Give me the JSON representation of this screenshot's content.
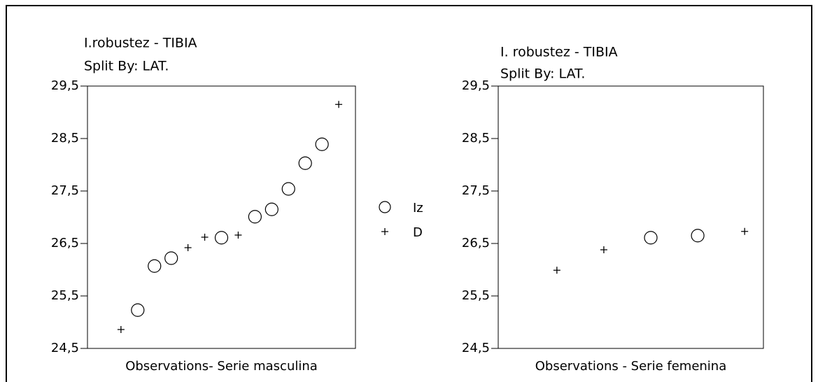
{
  "chart_data": [
    {
      "type": "scatter",
      "title": "I.robustez - TIBIA",
      "subtitle": "Split By: LAT.",
      "xlabel": "Observations- Serie masculina",
      "xlim": [
        -1,
        15
      ],
      "ylim": [
        24.5,
        29.5
      ],
      "yticks": [
        {
          "value": 24.5,
          "label": "24,5"
        },
        {
          "value": 25.5,
          "label": "25,5"
        },
        {
          "value": 26.5,
          "label": "26,5"
        },
        {
          "value": 27.5,
          "label": "27,5"
        },
        {
          "value": 28.5,
          "label": "28,5"
        },
        {
          "value": 29.5,
          "label": "29,5"
        }
      ],
      "series": [
        {
          "name": "Iz",
          "marker": "circle",
          "color": "#000000",
          "x": [
            2,
            3,
            4,
            7,
            9,
            10,
            11,
            12,
            13
          ],
          "values": [
            25.23,
            26.07,
            26.22,
            26.61,
            27.01,
            27.15,
            27.54,
            28.03,
            28.39
          ]
        },
        {
          "name": "D",
          "marker": "plus",
          "color": "#000000",
          "x": [
            1,
            5,
            6,
            8,
            14
          ],
          "values": [
            24.86,
            26.42,
            26.62,
            26.66,
            29.15
          ]
        }
      ]
    },
    {
      "type": "scatter",
      "title": "I. robustez - TIBIA",
      "subtitle": "Split By: LAT.",
      "xlabel": "Observations - Serie femenina",
      "xlim": [
        -0.25,
        5.4
      ],
      "ylim": [
        24.5,
        29.5
      ],
      "yticks": [
        {
          "value": 24.5,
          "label": "24,5"
        },
        {
          "value": 25.5,
          "label": "25,5"
        },
        {
          "value": 26.5,
          "label": "26,5"
        },
        {
          "value": 27.5,
          "label": "27,5"
        },
        {
          "value": 28.5,
          "label": "28,5"
        },
        {
          "value": 29.5,
          "label": "29,5"
        }
      ],
      "series": [
        {
          "marker": "circle",
          "color": "#000000",
          "x": [
            3,
            4
          ],
          "values": [
            26.61,
            26.65
          ]
        },
        {
          "marker": "plus",
          "color": "#000000",
          "x": [
            1,
            2,
            5
          ],
          "values": [
            25.99,
            26.38,
            26.73
          ]
        }
      ]
    }
  ]
}
